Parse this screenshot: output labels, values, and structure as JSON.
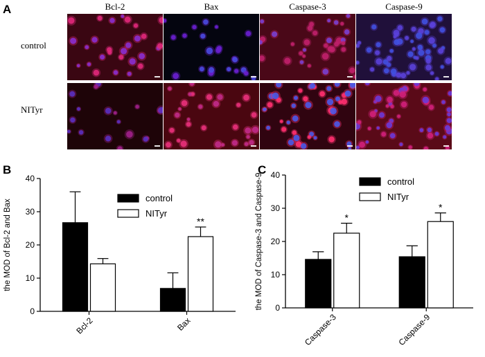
{
  "panel_a": {
    "letter": "A",
    "columns": [
      "Bcl-2",
      "Bax",
      "Caspase-3",
      "Caspase-9"
    ],
    "rows": [
      "control",
      "NITyr"
    ],
    "tiles": [
      {
        "bg": "#3a0612",
        "cell": "#e0287a",
        "nucleus": "#8a2fd0",
        "density": 28,
        "seed": 11
      },
      {
        "bg": "#04050f",
        "cell": "#6a1fd0",
        "nucleus": "#4a4ae0",
        "density": 22,
        "seed": 23
      },
      {
        "bg": "#4a0818",
        "cell": "#c0206a",
        "nucleus": "#7a40d0",
        "density": 34,
        "seed": 37
      },
      {
        "bg": "#20103a",
        "cell": "#5a40d8",
        "nucleus": "#4050e0",
        "density": 55,
        "seed": 41
      },
      {
        "bg": "#1e0408",
        "cell": "#a0208a",
        "nucleus": "#5a30c0",
        "density": 18,
        "seed": 53
      },
      {
        "bg": "#4a0610",
        "cell": "#e8307a",
        "nucleus": "#c02a8a",
        "density": 30,
        "seed": 67
      },
      {
        "bg": "#300410",
        "cell": "#ff3070",
        "nucleus": "#4a5ae8",
        "density": 45,
        "seed": 79
      },
      {
        "bg": "#5a0a18",
        "cell": "#d0207a",
        "nucleus": "#6a3ad8",
        "density": 50,
        "seed": 83
      }
    ]
  },
  "chart_data": [
    {
      "panel": "B",
      "type": "bar",
      "categories": [
        "Bcl-2",
        "Bax"
      ],
      "series": [
        {
          "name": "control",
          "values": [
            26.7,
            6.9
          ],
          "errors": [
            9.3,
            4.7
          ],
          "color": "#000000"
        },
        {
          "name": "NITyr",
          "values": [
            14.3,
            22.5
          ],
          "errors": [
            1.6,
            2.9
          ],
          "color": "#ffffff"
        }
      ],
      "annotations": [
        {
          "category": 1,
          "series": 1,
          "text": "**"
        }
      ],
      "ylabel": "the MOD of Bcl-2 and Bax",
      "ylim": [
        0,
        40
      ],
      "yticks": [
        0,
        10,
        20,
        30,
        40
      ],
      "legend": "top-right"
    },
    {
      "panel": "C",
      "type": "bar",
      "categories": [
        "Caspase-3",
        "Caspase-9"
      ],
      "series": [
        {
          "name": "control",
          "values": [
            14.6,
            15.4
          ],
          "errors": [
            2.3,
            3.3
          ],
          "color": "#000000"
        },
        {
          "name": "NITyr",
          "values": [
            22.5,
            26.0
          ],
          "errors": [
            3.0,
            2.6
          ],
          "color": "#ffffff"
        }
      ],
      "annotations": [
        {
          "category": 0,
          "series": 1,
          "text": "*"
        },
        {
          "category": 1,
          "series": 1,
          "text": "*"
        }
      ],
      "ylabel": "the MOD of Caspase-3 and Caspase-9",
      "ylim": [
        0,
        40
      ],
      "yticks": [
        0,
        10,
        20,
        30,
        40
      ],
      "legend": "top-center"
    }
  ]
}
